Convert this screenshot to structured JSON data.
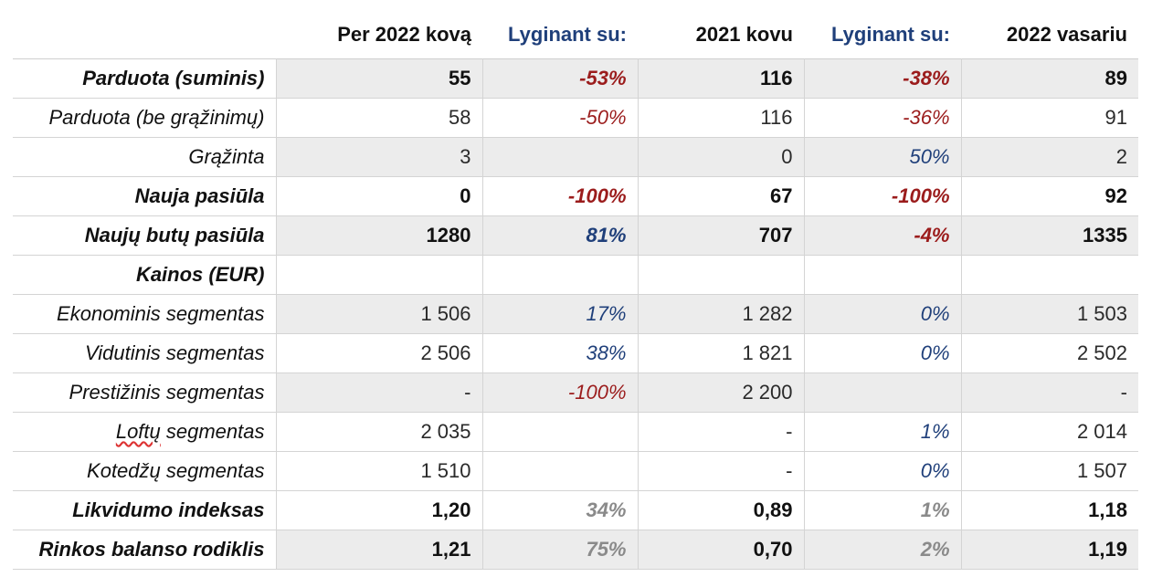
{
  "header": {
    "c1": "Per 2022 kovą",
    "c2": "Lyginant su:",
    "c3": "2021 kovu",
    "c4": "Lyginant su:",
    "c5": "2022 vasariu"
  },
  "colors": {
    "negative": "#9b1c1c",
    "positive": "#1f3f7a",
    "neutral": "#8a8a8a",
    "shade": "#ececec"
  },
  "rows": [
    {
      "label": "Parduota (suminis)",
      "v1": "55",
      "p1": "-53%",
      "v2": "116",
      "p2": "-38%",
      "v3": "89"
    },
    {
      "label": "Parduota (be grąžinimų)",
      "v1": "58",
      "p1": "-50%",
      "v2": "116",
      "p2": "-36%",
      "v3": "91"
    },
    {
      "label": "Grąžinta",
      "v1": "3",
      "p1": "",
      "v2": "0",
      "p2": "50%",
      "v3": "2"
    },
    {
      "label": "Nauja pasiūla",
      "v1": "0",
      "p1": "-100%",
      "v2": "67",
      "p2": "-100%",
      "v3": "92"
    },
    {
      "label": "Naujų butų pasiūla",
      "v1": "1280",
      "p1": "81%",
      "v2": "707",
      "p2": "-4%",
      "v3": "1335"
    },
    {
      "label": "Kainos (EUR)",
      "v1": "",
      "p1": "",
      "v2": "",
      "p2": "",
      "v3": ""
    },
    {
      "label": "Ekonominis segmentas",
      "v1": "1 506",
      "p1": "17%",
      "v2": "1 282",
      "p2": "0%",
      "v3": "1 503"
    },
    {
      "label": "Vidutinis segmentas",
      "v1": "2 506",
      "p1": "38%",
      "v2": "1 821",
      "p2": "0%",
      "v3": "2 502"
    },
    {
      "label": "Prestižinis segmentas",
      "v1": "-",
      "p1": "-100%",
      "v2": "2 200",
      "p2": "",
      "v3": "-"
    },
    {
      "label_pre": "",
      "label_wavy": "Loftų",
      "label_post": " segmentas",
      "v1": "2 035",
      "p1": "",
      "v2": "-",
      "p2": "1%",
      "v3": "2 014"
    },
    {
      "label": "Kotedžų segmentas",
      "v1": "1 510",
      "p1": "",
      "v2": "-",
      "p2": "0%",
      "v3": "1 507"
    },
    {
      "label": "Likvidumo indeksas",
      "v1": "1,20",
      "p1": "34%",
      "v2": "0,89",
      "p2": "1%",
      "v3": "1,18"
    },
    {
      "label": "Rinkos balanso rodiklis",
      "v1": "1,21",
      "p1": "75%",
      "v2": "0,70",
      "p2": "2%",
      "v3": "1,19"
    }
  ]
}
